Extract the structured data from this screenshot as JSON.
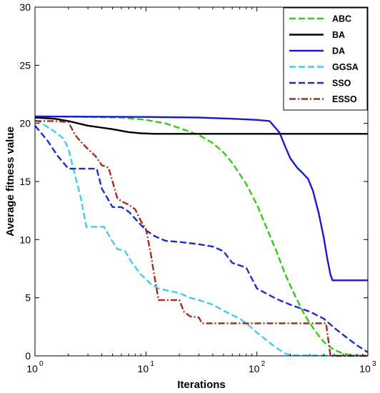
{
  "chart_data": {
    "type": "line",
    "title": "",
    "xlabel": "Iterations",
    "ylabel": "Average fitness value",
    "xscale": "log",
    "xlim": [
      1,
      1000
    ],
    "ylim": [
      0,
      30
    ],
    "x_ticks": [
      1,
      10,
      100,
      1000
    ],
    "x_tick_labels": [
      "10",
      "10",
      "10",
      "10"
    ],
    "x_tick_exponents": [
      "0",
      "1",
      "2",
      "3"
    ],
    "y_ticks": [
      0,
      5,
      10,
      15,
      20,
      25,
      30
    ],
    "y_tick_labels": [
      "0",
      "5",
      "10",
      "15",
      "20",
      "25",
      "30"
    ],
    "grid": false,
    "legend_position": "top-right",
    "series": [
      {
        "name": "ABC",
        "color": "#33cc11",
        "dash": "dashed",
        "points": [
          [
            1,
            20.6
          ],
          [
            3,
            20.55
          ],
          [
            6,
            20.5
          ],
          [
            10,
            20.3
          ],
          [
            15,
            20.0
          ],
          [
            20,
            19.6
          ],
          [
            30,
            19.0
          ],
          [
            40,
            18.3
          ],
          [
            50,
            17.5
          ],
          [
            60,
            16.6
          ],
          [
            80,
            14.8
          ],
          [
            100,
            13.0
          ],
          [
            120,
            11.2
          ],
          [
            150,
            9.0
          ],
          [
            180,
            7.0
          ],
          [
            220,
            5.2
          ],
          [
            260,
            3.8
          ],
          [
            300,
            2.8
          ],
          [
            350,
            1.9
          ],
          [
            400,
            1.2
          ],
          [
            500,
            0.5
          ],
          [
            600,
            0.2
          ],
          [
            700,
            0.05
          ],
          [
            1000,
            0
          ]
        ]
      },
      {
        "name": "BA",
        "color": "#000000",
        "dash": "solid",
        "points": [
          [
            1,
            20.5
          ],
          [
            1.5,
            20.4
          ],
          [
            2,
            20.2
          ],
          [
            3,
            19.8
          ],
          [
            5,
            19.5
          ],
          [
            7,
            19.25
          ],
          [
            9,
            19.15
          ],
          [
            12,
            19.1
          ],
          [
            20,
            19.1
          ],
          [
            100,
            19.1
          ],
          [
            1000,
            19.1
          ]
        ]
      },
      {
        "name": "DA",
        "color": "#1a1acc",
        "dash": "solid",
        "points": [
          [
            1,
            20.6
          ],
          [
            10,
            20.55
          ],
          [
            30,
            20.5
          ],
          [
            60,
            20.4
          ],
          [
            100,
            20.3
          ],
          [
            130,
            20.2
          ],
          [
            160,
            19.2
          ],
          [
            180,
            18.0
          ],
          [
            200,
            17.0
          ],
          [
            230,
            16.2
          ],
          [
            260,
            15.7
          ],
          [
            290,
            15.2
          ],
          [
            320,
            14.2
          ],
          [
            360,
            12.3
          ],
          [
            400,
            10.2
          ],
          [
            430,
            8.4
          ],
          [
            460,
            7.0
          ],
          [
            480,
            6.5
          ],
          [
            1000,
            6.5
          ]
        ]
      },
      {
        "name": "GGSA",
        "color": "#44ccee",
        "dash": "dashed",
        "points": [
          [
            1,
            20.3
          ],
          [
            1.2,
            19.9
          ],
          [
            1.5,
            19.3
          ],
          [
            1.8,
            18.7
          ],
          [
            2,
            17.8
          ],
          [
            2.3,
            15.5
          ],
          [
            2.6,
            13.5
          ],
          [
            2.9,
            11.1
          ],
          [
            3.5,
            11.1
          ],
          [
            4.2,
            11.1
          ],
          [
            4.8,
            10.1
          ],
          [
            5.5,
            9.2
          ],
          [
            6.5,
            9.0
          ],
          [
            7.5,
            8.0
          ],
          [
            9,
            7.0
          ],
          [
            10,
            6.6
          ],
          [
            11,
            6.2
          ],
          [
            13,
            5.8
          ],
          [
            16,
            5.6
          ],
          [
            20,
            5.4
          ],
          [
            25,
            5.0
          ],
          [
            30,
            4.8
          ],
          [
            40,
            4.4
          ],
          [
            50,
            3.9
          ],
          [
            60,
            3.5
          ],
          [
            70,
            3.2
          ],
          [
            80,
            2.8
          ],
          [
            90,
            2.4
          ],
          [
            100,
            2.0
          ],
          [
            120,
            1.4
          ],
          [
            140,
            0.9
          ],
          [
            160,
            0.5
          ],
          [
            180,
            0.2
          ],
          [
            200,
            0.05
          ],
          [
            1000,
            0
          ]
        ]
      },
      {
        "name": "SSO",
        "color": "#1a2ecc",
        "dash": "dashed",
        "points": [
          [
            1,
            19.8
          ],
          [
            1.3,
            18.5
          ],
          [
            1.6,
            17.2
          ],
          [
            2,
            16.1
          ],
          [
            3,
            16.1
          ],
          [
            3.6,
            16.1
          ],
          [
            4,
            14.4
          ],
          [
            5,
            12.8
          ],
          [
            6,
            12.8
          ],
          [
            7,
            12.4
          ],
          [
            8,
            11.8
          ],
          [
            10,
            10.8
          ],
          [
            12,
            10.3
          ],
          [
            15,
            9.9
          ],
          [
            20,
            9.8
          ],
          [
            30,
            9.6
          ],
          [
            40,
            9.4
          ],
          [
            50,
            9.0
          ],
          [
            60,
            8.0
          ],
          [
            80,
            7.6
          ],
          [
            100,
            5.8
          ],
          [
            150,
            4.9
          ],
          [
            200,
            4.4
          ],
          [
            300,
            3.8
          ],
          [
            400,
            3.2
          ],
          [
            500,
            2.4
          ],
          [
            600,
            1.8
          ],
          [
            800,
            0.9
          ],
          [
            1000,
            0.3
          ]
        ]
      },
      {
        "name": "ESSO",
        "color": "#aa2a1a",
        "dash": "dashdot",
        "points": [
          [
            1,
            20.2
          ],
          [
            1.5,
            20.2
          ],
          [
            2,
            20.1
          ],
          [
            2.3,
            19.0
          ],
          [
            2.6,
            18.4
          ],
          [
            3,
            17.8
          ],
          [
            3.5,
            17.2
          ],
          [
            4,
            16.4
          ],
          [
            4.6,
            16.2
          ],
          [
            5,
            15.0
          ],
          [
            5.5,
            13.6
          ],
          [
            6,
            13.3
          ],
          [
            7,
            13.0
          ],
          [
            8,
            12.6
          ],
          [
            9,
            11.6
          ],
          [
            10,
            10.9
          ],
          [
            11,
            8.9
          ],
          [
            12,
            6.7
          ],
          [
            13,
            4.8
          ],
          [
            15,
            4.8
          ],
          [
            20,
            4.8
          ],
          [
            22,
            3.8
          ],
          [
            25,
            3.4
          ],
          [
            30,
            3.3
          ],
          [
            32,
            2.8
          ],
          [
            50,
            2.8
          ],
          [
            100,
            2.8
          ],
          [
            200,
            2.8
          ],
          [
            420,
            2.8
          ],
          [
            460,
            0
          ],
          [
            1000,
            0
          ]
        ]
      }
    ]
  }
}
